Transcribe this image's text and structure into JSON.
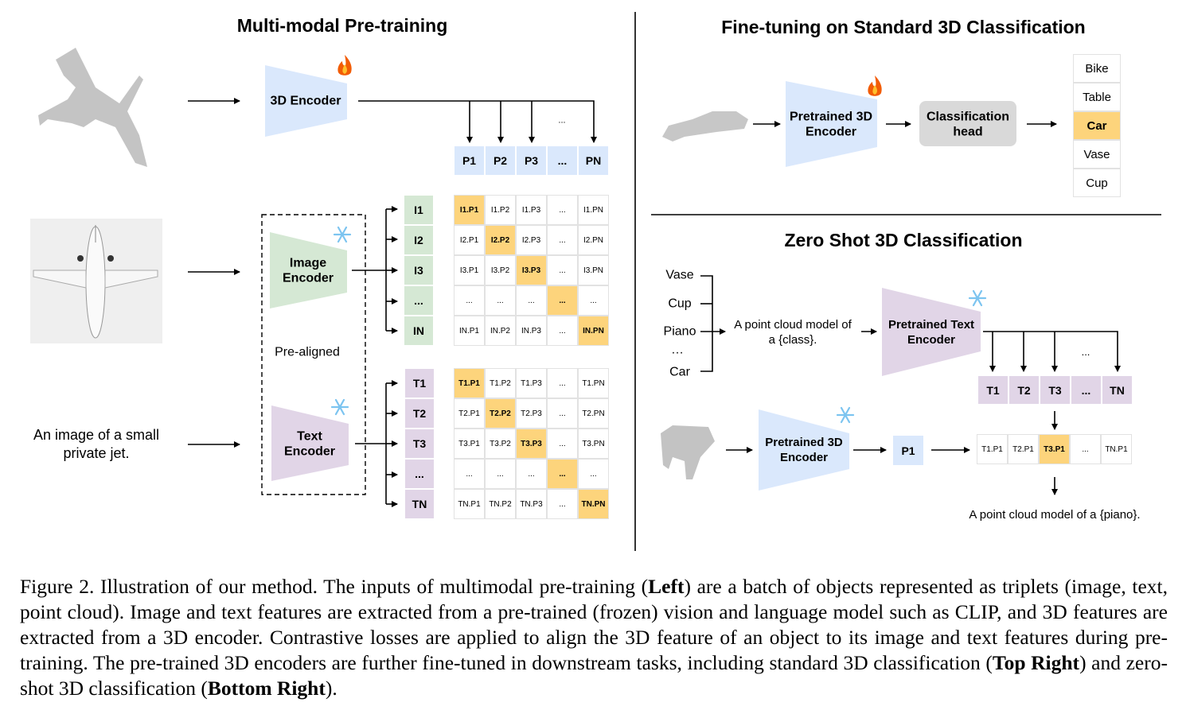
{
  "colors": {
    "encoder_3d": "#dae8fc",
    "encoder_image": "#d5e8d4",
    "encoder_text": "#e1d5e7",
    "highlight": "#fdd47c",
    "head": "#d9d9d9"
  },
  "icons": {
    "trainable": "fire-icon",
    "frozen": "snowflake-icon"
  },
  "left": {
    "title": "Multi-modal Pre-training",
    "encoder_3d": "3D Encoder",
    "encoder_image": [
      "Image",
      "Encoder"
    ],
    "encoder_text": [
      "Text",
      "Encoder"
    ],
    "pre_aligned": "Pre-aligned",
    "text_input": [
      "An image of a small",
      "private jet."
    ],
    "ellipsis": "...",
    "p_row": [
      "P1",
      "P2",
      "P3",
      "...",
      "PN"
    ],
    "i_col": [
      "I1",
      "I2",
      "I3",
      "...",
      "IN"
    ],
    "t_col": [
      "T1",
      "T2",
      "T3",
      "...",
      "TN"
    ],
    "image_matrix": [
      [
        "I1.P1",
        "I1.P2",
        "I1.P3",
        "...",
        "I1.PN"
      ],
      [
        "I2.P1",
        "I2.P2",
        "I2.P3",
        "...",
        "I2.PN"
      ],
      [
        "I3.P1",
        "I3.P2",
        "I3.P3",
        "...",
        "I3.PN"
      ],
      [
        "...",
        "...",
        "...",
        "...",
        "..."
      ],
      [
        "IN.P1",
        "IN.P2",
        "IN.P3",
        "...",
        "IN.PN"
      ]
    ],
    "text_matrix": [
      [
        "T1.P1",
        "T1.P2",
        "T1.P3",
        "...",
        "T1.PN"
      ],
      [
        "T2.P1",
        "T2.P2",
        "T2.P3",
        "...",
        "T2.PN"
      ],
      [
        "T3.P1",
        "T3.P2",
        "T3.P3",
        "...",
        "T3.PN"
      ],
      [
        "...",
        "...",
        "...",
        "...",
        "..."
      ],
      [
        "TN.P1",
        "TN.P2",
        "TN.P3",
        "...",
        "TN.PN"
      ]
    ]
  },
  "top_right": {
    "title": "Fine-tuning on Standard 3D Classification",
    "encoder": [
      "Pretrained 3D",
      "Encoder"
    ],
    "head": [
      "Classification",
      "head"
    ],
    "classes": [
      "Bike",
      "Table",
      "Car",
      "Vase",
      "Cup"
    ],
    "selected_class": "Car"
  },
  "bottom_right": {
    "title": "Zero Shot 3D Classification",
    "classes": [
      "Vase",
      "Cup",
      "Piano",
      "…",
      "Car"
    ],
    "prompt": [
      "A point cloud model of",
      "a {class}."
    ],
    "text_encoder": [
      "Pretrained Text",
      "Encoder"
    ],
    "encoder_3d": [
      "Pretrained 3D",
      "Encoder"
    ],
    "ellipsis": "...",
    "t_row": [
      "T1",
      "T2",
      "T3",
      "...",
      "TN"
    ],
    "p1": "P1",
    "scores": [
      "T1.P1",
      "T2.P1",
      "T3.P1",
      "...",
      "TN.P1"
    ],
    "selected_score": "T3.P1",
    "result": "A point cloud model of a {piano}."
  },
  "caption": [
    {
      "text": "Figure 2. Illustration of our method. The inputs of multimodal pre-training (",
      "bold": false
    },
    {
      "text": "Left",
      "bold": true
    },
    {
      "text": ") are a batch of objects represented as triplets (image, text, point cloud).  Image and text features are extracted from a pre-trained (frozen) vision and language model such as CLIP, and 3D features are extracted from a 3D encoder. Contrastive losses are applied to align the 3D feature of an object to its image and text features during pre-training. The pre-trained 3D encoders are further fine-tuned in downstream tasks, including standard 3D classification (",
      "bold": false
    },
    {
      "text": "Top Right",
      "bold": true
    },
    {
      "text": ") and zero-shot 3D classification (",
      "bold": false
    },
    {
      "text": "Bottom Right",
      "bold": true
    },
    {
      "text": ").",
      "bold": false
    }
  ]
}
